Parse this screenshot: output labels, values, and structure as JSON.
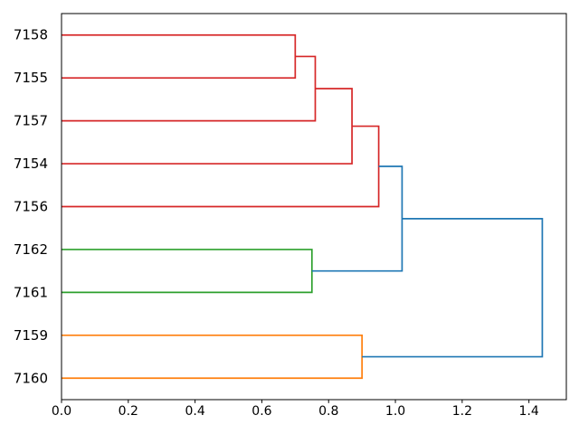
{
  "figure": {
    "background_color": "#ffffff",
    "title": ""
  },
  "x_axis": {
    "tick_labels": [
      "0.0",
      "0.2",
      "0.4",
      "0.6",
      "0.8",
      "1.0",
      "1.2",
      "1.4"
    ]
  },
  "y_axis": {
    "leaf_labels": [
      "7158",
      "7155",
      "7157",
      "7154",
      "7156",
      "7162",
      "7161",
      "7159",
      "7160"
    ]
  },
  "chart_data": {
    "type": "dendrogram",
    "orientation": "leaves-left-root-right",
    "title": "",
    "xlabel": "",
    "ylabel": "",
    "grid": false,
    "legend": false,
    "xlim": [
      0,
      1.512
    ],
    "x_ticks": [
      0,
      0.2,
      0.4,
      0.6,
      0.8,
      1.0,
      1.2,
      1.4
    ],
    "leaves": [
      "7158",
      "7155",
      "7157",
      "7154",
      "7156",
      "7162",
      "7161",
      "7159",
      "7160"
    ],
    "links": [
      {
        "id": "n1",
        "children": [
          "7158",
          "7155"
        ],
        "distance": 0.7,
        "color_key": "red"
      },
      {
        "id": "n2",
        "children": [
          "n1",
          "7157"
        ],
        "distance": 0.76,
        "color_key": "red"
      },
      {
        "id": "n3",
        "children": [
          "n2",
          "7154"
        ],
        "distance": 0.87,
        "color_key": "red"
      },
      {
        "id": "n4",
        "children": [
          "n3",
          "7156"
        ],
        "distance": 0.95,
        "color_key": "red"
      },
      {
        "id": "n5",
        "children": [
          "7162",
          "7161"
        ],
        "distance": 0.75,
        "color_key": "green"
      },
      {
        "id": "n6",
        "children": [
          "7159",
          "7160"
        ],
        "distance": 0.9,
        "color_key": "orange"
      },
      {
        "id": "n7",
        "children": [
          "n4",
          "n5"
        ],
        "distance": 1.02,
        "color_key": "blue"
      },
      {
        "id": "n8",
        "children": [
          "n7",
          "n6"
        ],
        "distance": 1.44,
        "color_key": "blue"
      }
    ],
    "clusters": [
      {
        "color": "red",
        "members": [
          "7158",
          "7155",
          "7157",
          "7154",
          "7156"
        ]
      },
      {
        "color": "green",
        "members": [
          "7162",
          "7161"
        ]
      },
      {
        "color": "orange",
        "members": [
          "7159",
          "7160"
        ]
      }
    ],
    "colors": {
      "red": "#d62728",
      "green": "#2ca02c",
      "orange": "#ff7f0e",
      "blue": "#1f77b4",
      "axis": "#000000"
    },
    "line_width": 1.7
  }
}
